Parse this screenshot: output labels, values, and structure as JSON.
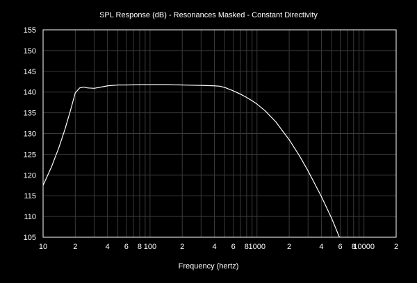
{
  "chart_data": {
    "type": "line",
    "title": "SPL Response (dB) - Resonances Masked - Constant Directivity",
    "xlabel": "Frequency (hertz)",
    "ylabel": "",
    "x_scale": "log",
    "xlim": [
      10,
      20000
    ],
    "ylim": [
      105,
      155
    ],
    "y_ticks": [
      155,
      150,
      145,
      140,
      135,
      130,
      125,
      120,
      115,
      110,
      105
    ],
    "x_ticks": [
      {
        "value": 10,
        "label": "10"
      },
      {
        "value": 20,
        "label": "2"
      },
      {
        "value": 40,
        "label": "4"
      },
      {
        "value": 60,
        "label": "6"
      },
      {
        "value": 80,
        "label": "8"
      },
      {
        "value": 100,
        "label": "100"
      },
      {
        "value": 200,
        "label": "2"
      },
      {
        "value": 400,
        "label": "4"
      },
      {
        "value": 600,
        "label": "6"
      },
      {
        "value": 800,
        "label": "8"
      },
      {
        "value": 1000,
        "label": "1000"
      },
      {
        "value": 2000,
        "label": "2"
      },
      {
        "value": 4000,
        "label": "4"
      },
      {
        "value": 6000,
        "label": "6"
      },
      {
        "value": 8000,
        "label": "8"
      },
      {
        "value": 10000,
        "label": "10000"
      },
      {
        "value": 20000,
        "label": "2"
      }
    ],
    "grid": true,
    "colors": {
      "background": "#000000",
      "line": "#ffffff",
      "grid": "#3a3a3a",
      "text": "#ffffff"
    },
    "series": [
      {
        "x": [
          10,
          12,
          14,
          16,
          18,
          20,
          22,
          24,
          26,
          30,
          35,
          40,
          50,
          60,
          80,
          100,
          150,
          200,
          300,
          400,
          450,
          500,
          600,
          700,
          800,
          900,
          1000,
          1200,
          1500,
          2000,
          2500,
          3000,
          4000,
          5000,
          5900
        ],
        "y": [
          117.5,
          122.0,
          126.5,
          131.0,
          135.5,
          139.8,
          141.0,
          141.2,
          141.0,
          140.9,
          141.2,
          141.5,
          141.7,
          141.7,
          141.8,
          141.8,
          141.8,
          141.7,
          141.6,
          141.5,
          141.4,
          141.1,
          140.3,
          139.5,
          138.7,
          137.9,
          137.1,
          135.4,
          132.8,
          128.5,
          124.6,
          121.0,
          114.8,
          109.5,
          105.0
        ]
      }
    ]
  }
}
